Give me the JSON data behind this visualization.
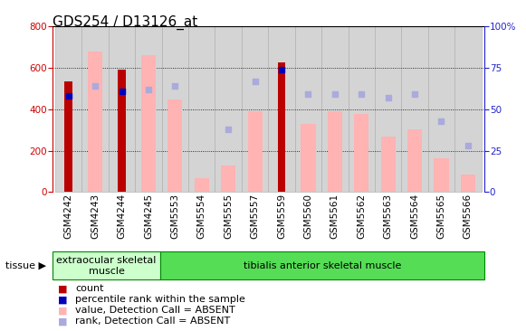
{
  "title": "GDS254 / D13126_at",
  "samples": [
    "GSM4242",
    "GSM4243",
    "GSM4244",
    "GSM4245",
    "GSM5553",
    "GSM5554",
    "GSM5555",
    "GSM5557",
    "GSM5559",
    "GSM5560",
    "GSM5561",
    "GSM5562",
    "GSM5563",
    "GSM5564",
    "GSM5565",
    "GSM5566"
  ],
  "red_bars": [
    535,
    0,
    590,
    0,
    0,
    0,
    0,
    0,
    625,
    0,
    0,
    0,
    0,
    0,
    0,
    0
  ],
  "blue_dots": [
    58,
    0,
    61,
    0,
    0,
    0,
    0,
    0,
    74,
    0,
    0,
    0,
    0,
    0,
    0,
    0
  ],
  "pink_bars": [
    0,
    680,
    0,
    660,
    445,
    65,
    130,
    390,
    0,
    330,
    390,
    375,
    270,
    305,
    165,
    85
  ],
  "blue_squares": [
    0,
    64,
    0,
    62,
    64,
    0,
    38,
    67,
    0,
    59,
    59,
    59,
    57,
    59,
    43,
    28
  ],
  "tissue_groups": [
    {
      "label": "extraocular skeletal\nmuscle",
      "start": 0,
      "end": 4
    },
    {
      "label": "tibialis anterior skeletal muscle",
      "start": 4,
      "end": 16
    }
  ],
  "ylim_left": [
    0,
    800
  ],
  "ylim_right": [
    0,
    100
  ],
  "yticks_left": [
    0,
    200,
    400,
    600,
    800
  ],
  "yticks_right": [
    0,
    25,
    50,
    75,
    100
  ],
  "left_axis_color": "#cc0000",
  "right_axis_color": "#2222cc",
  "bar_width": 0.55,
  "red_color": "#bb0000",
  "blue_color": "#0000bb",
  "pink_color": "#ffb3b3",
  "blue_sq_color": "#aaaadd",
  "tissue_color_1": "#ccffcc",
  "tissue_color_2": "#55dd55",
  "tissue_border": "#008800",
  "grid_color": "#000000",
  "background_color": "#ffffff",
  "tick_label_fontsize": 7.5,
  "legend_fontsize": 8,
  "title_fontsize": 11
}
